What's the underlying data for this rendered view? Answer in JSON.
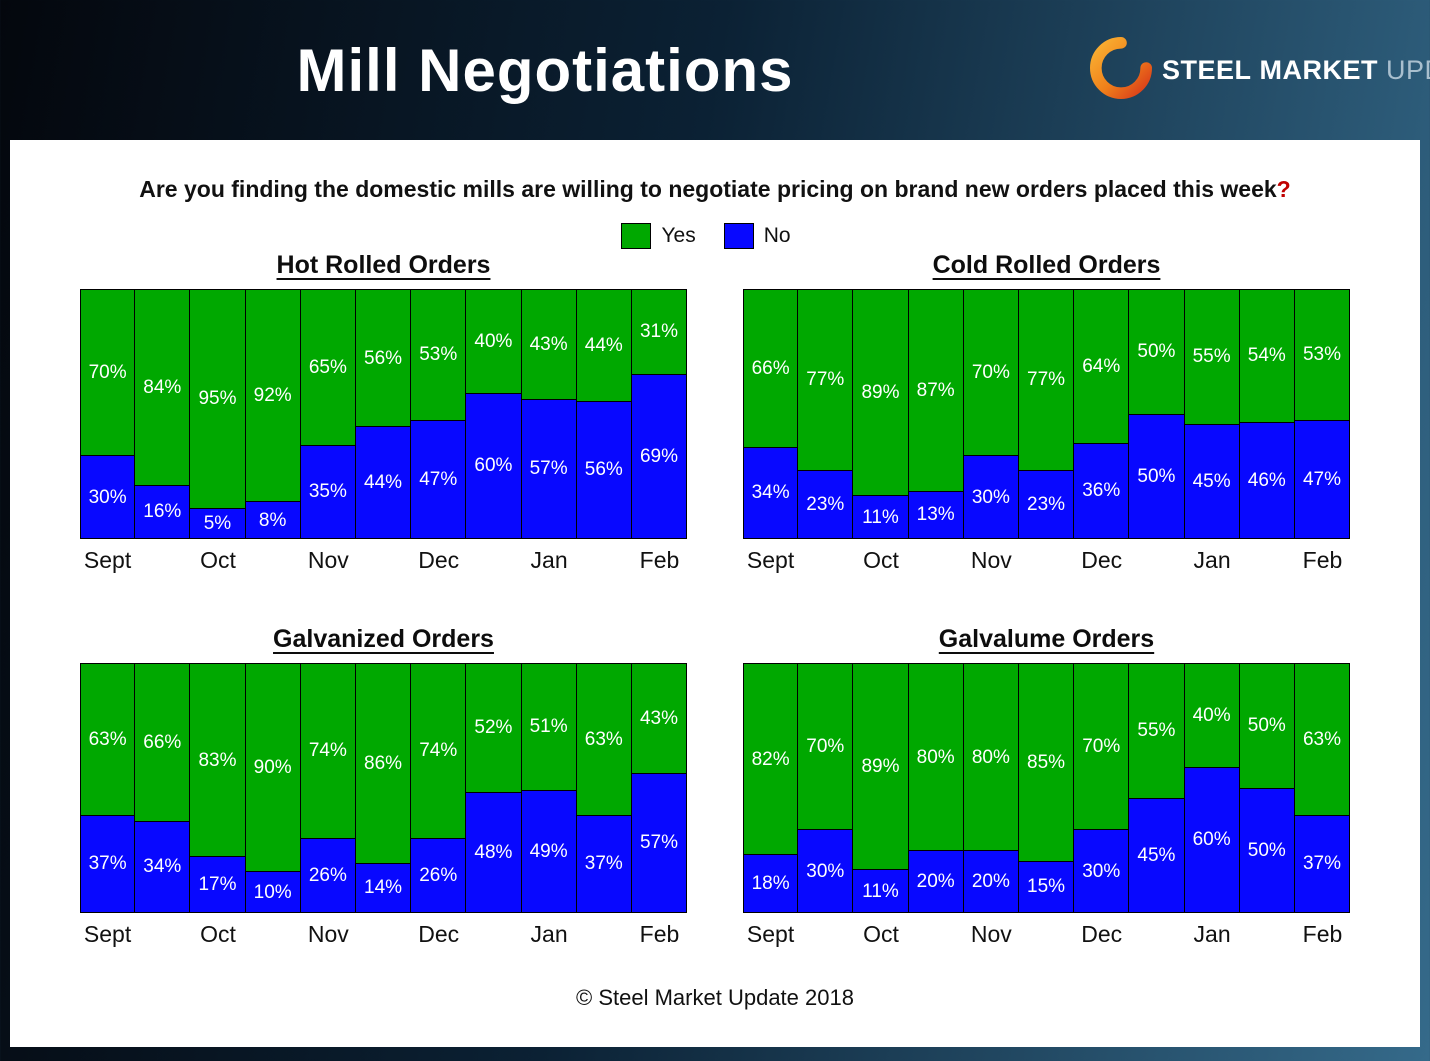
{
  "header": {
    "title": "Mill Negotiations",
    "logo": {
      "steel": "STEEL",
      "market": "MARKET",
      "update": "UPDATE"
    }
  },
  "question": {
    "text": "Are you finding the domestic mills are willing to negotiate pricing on brand new orders placed this week",
    "mark": "?"
  },
  "legend": {
    "yes": "Yes",
    "no": "No"
  },
  "colors": {
    "yes": "#00a800",
    "no": "#0808ff",
    "logo_orange_light": "#f9b233",
    "logo_orange_dark": "#d93a1a"
  },
  "footer": "© Steel Market Update 2018",
  "chart_data": [
    {
      "type": "bar",
      "subtype": "stacked-percent-column",
      "title": "Hot Rolled Orders",
      "legend_entries": [
        "Yes",
        "No"
      ],
      "unit": "%",
      "ylim": [
        0,
        100
      ],
      "months": [
        "Sept",
        "",
        "Oct",
        "",
        "Nov",
        "",
        "Dec",
        "",
        "Jan",
        "",
        "Feb"
      ],
      "yes": [
        70,
        84,
        95,
        92,
        65,
        56,
        53,
        40,
        43,
        44,
        31
      ],
      "no": [
        30,
        16,
        5,
        8,
        35,
        44,
        47,
        60,
        57,
        56,
        69
      ]
    },
    {
      "type": "bar",
      "subtype": "stacked-percent-column",
      "title": "Cold Rolled Orders",
      "legend_entries": [
        "Yes",
        "No"
      ],
      "unit": "%",
      "ylim": [
        0,
        100
      ],
      "months": [
        "Sept",
        "",
        "Oct",
        "",
        "Nov",
        "",
        "Dec",
        "",
        "Jan",
        "",
        "Feb"
      ],
      "yes": [
        66,
        77,
        89,
        87,
        70,
        77,
        64,
        50,
        55,
        54,
        53
      ],
      "no": [
        34,
        23,
        11,
        13,
        30,
        23,
        36,
        50,
        45,
        46,
        47
      ]
    },
    {
      "type": "bar",
      "subtype": "stacked-percent-column",
      "title": "Galvanized Orders",
      "legend_entries": [
        "Yes",
        "No"
      ],
      "unit": "%",
      "ylim": [
        0,
        100
      ],
      "months": [
        "Sept",
        "",
        "Oct",
        "",
        "Nov",
        "",
        "Dec",
        "",
        "Jan",
        "",
        "Feb"
      ],
      "yes": [
        63,
        66,
        83,
        90,
        74,
        86,
        74,
        52,
        51,
        63,
        43
      ],
      "no": [
        37,
        34,
        17,
        10,
        26,
        14,
        26,
        48,
        49,
        37,
        57
      ]
    },
    {
      "type": "bar",
      "subtype": "stacked-percent-column",
      "title": "Galvalume Orders",
      "legend_entries": [
        "Yes",
        "No"
      ],
      "unit": "%",
      "ylim": [
        0,
        100
      ],
      "months": [
        "Sept",
        "",
        "Oct",
        "",
        "Nov",
        "",
        "Dec",
        "",
        "Jan",
        "",
        "Feb"
      ],
      "yes": [
        82,
        70,
        89,
        80,
        80,
        85,
        70,
        55,
        40,
        50,
        63
      ],
      "no": [
        18,
        30,
        11,
        20,
        20,
        15,
        30,
        45,
        60,
        50,
        37
      ]
    }
  ]
}
